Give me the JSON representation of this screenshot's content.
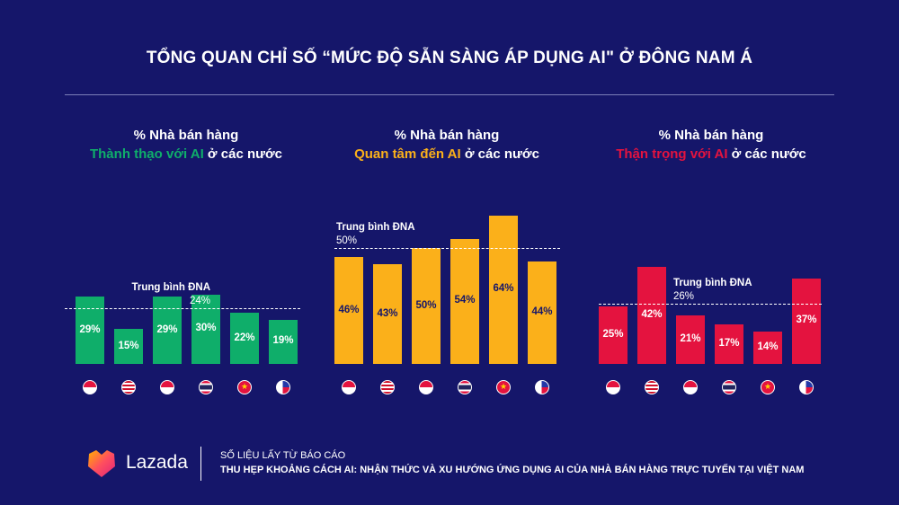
{
  "title": "TỔNG QUAN CHỈ SỐ “MỨC ĐỘ SẴN SÀNG ÁP DỤNG AI\" Ở ĐÔNG NAM Á",
  "colors": {
    "background": "#15166a",
    "green": "#0fae6a",
    "yellow": "#fbb01a",
    "red": "#e4133f"
  },
  "chart_data": [
    {
      "type": "bar",
      "title_line1": "% Nhà bán hàng",
      "title_highlight": "Thành thạo với AI",
      "title_rest": " ở các nước",
      "color": "#0fae6a",
      "categories": [
        "singapore",
        "malaysia",
        "indonesia",
        "thailand",
        "vietnam",
        "philippines"
      ],
      "values": [
        29,
        15,
        29,
        30,
        22,
        19
      ],
      "labels": [
        "29%",
        "15%",
        "29%",
        "30%",
        "22%",
        "19%"
      ],
      "average": {
        "label": "Trung bình ĐNA",
        "value": 24,
        "text": "24%"
      }
    },
    {
      "type": "bar",
      "title_line1": "% Nhà bán hàng",
      "title_highlight": "Quan tâm đến AI",
      "title_rest": " ở các nước",
      "color": "#fbb01a",
      "categories": [
        "singapore",
        "malaysia",
        "indonesia",
        "thailand",
        "vietnam",
        "philippines"
      ],
      "values": [
        46,
        43,
        50,
        54,
        64,
        44
      ],
      "labels": [
        "46%",
        "43%",
        "50%",
        "54%",
        "64%",
        "44%"
      ],
      "average": {
        "label": "Trung bình ĐNA",
        "value": 50,
        "text": "50%"
      }
    },
    {
      "type": "bar",
      "title_line1": "% Nhà bán hàng",
      "title_highlight": "Thận trọng với AI",
      "title_rest": " ở các nước",
      "color": "#e4133f",
      "categories": [
        "singapore",
        "malaysia",
        "indonesia",
        "thailand",
        "vietnam",
        "philippines"
      ],
      "values": [
        25,
        42,
        21,
        17,
        14,
        37
      ],
      "labels": [
        "25%",
        "42%",
        "21%",
        "17%",
        "14%",
        "37%"
      ],
      "average": {
        "label": "Trung bình ĐNA",
        "value": 26,
        "text": "26%"
      }
    }
  ],
  "footer": {
    "brand": "Lazada",
    "source_label": "SỐ LIỆU LẤY TỪ BÁO CÁO",
    "report_title": "THU HẸP KHOẢNG CÁCH AI: NHẬN THỨC VÀ XU HƯỚNG ỨNG DỤNG AI CỦA NHÀ BÁN HÀNG TRỰC TUYẾN TẠI VIỆT NAM"
  }
}
